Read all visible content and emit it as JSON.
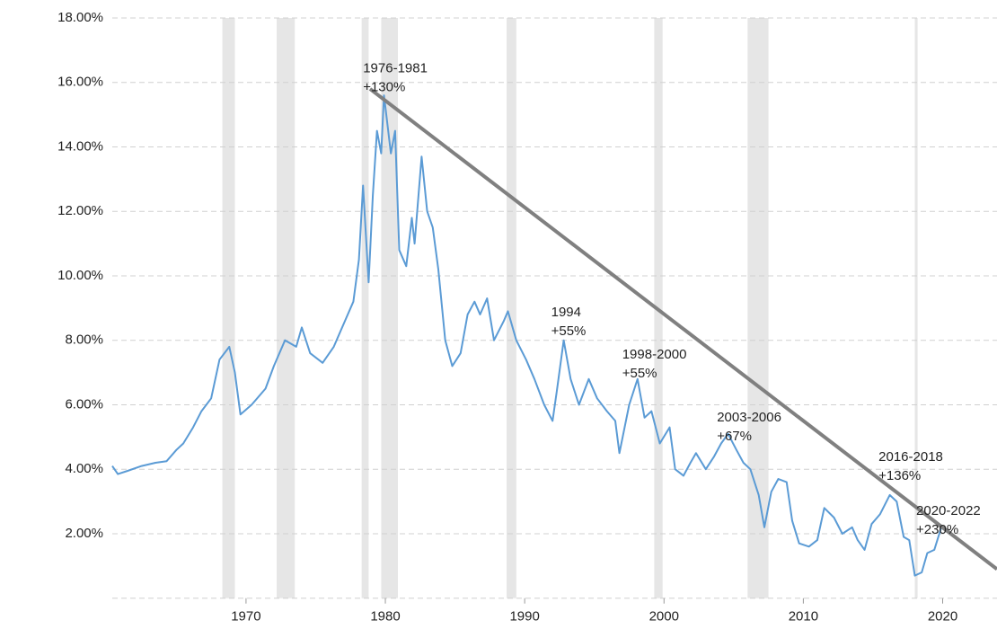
{
  "chart_data": {
    "type": "line",
    "x": [
      1960.4,
      1960.8,
      1961.5,
      1962.5,
      1963.5,
      1964.3,
      1965.0,
      1965.5,
      1966.2,
      1966.8,
      1967.5,
      1968.1,
      1968.8,
      1969.2,
      1969.6,
      1970.4,
      1971.4,
      1972.0,
      1972.8,
      1973.6,
      1974.0,
      1974.6,
      1975.5,
      1976.3,
      1977.2,
      1977.7,
      1978.1,
      1978.4,
      1978.8,
      1979.1,
      1979.4,
      1979.7,
      1979.9,
      1980.4,
      1980.7,
      1981.0,
      1981.5,
      1981.9,
      1982.1,
      1982.6,
      1983.0,
      1983.4,
      1983.8,
      1984.3,
      1984.8,
      1985.4,
      1985.9,
      1986.4,
      1986.8,
      1987.3,
      1987.8,
      1988.5,
      1988.8,
      1989.4,
      1990.1,
      1990.7,
      1991.4,
      1992.0,
      1992.3,
      1992.8,
      1993.3,
      1993.9,
      1994.6,
      1995.2,
      1995.9,
      1996.5,
      1996.8,
      1997.5,
      1998.1,
      1998.6,
      1999.1,
      1999.7,
      2000.4,
      2000.8,
      2001.4,
      2001.9,
      2002.3,
      2003.0,
      2003.6,
      2004.1,
      2004.6,
      2005.2,
      2005.7,
      2006.2,
      2006.8,
      2007.2,
      2007.7,
      2008.2,
      2008.8,
      2009.2,
      2009.7,
      2010.4,
      2011.0,
      2011.5,
      2012.2,
      2012.8,
      2013.5,
      2013.9,
      2014.4,
      2014.9,
      2015.5,
      2016.2,
      2016.7,
      2017.2,
      2017.6,
      2018.0,
      2018.5,
      2018.9,
      2019.4,
      2019.9
    ],
    "series": [
      {
        "color": "#5b9bd5",
        "values": [
          4.1,
          3.85,
          3.95,
          4.1,
          4.2,
          4.25,
          4.6,
          4.8,
          5.3,
          5.8,
          6.2,
          7.4,
          7.8,
          7.0,
          5.7,
          6.0,
          6.5,
          7.2,
          8.0,
          7.8,
          8.4,
          7.6,
          7.3,
          7.8,
          8.7,
          9.2,
          10.5,
          12.8,
          9.8,
          12.5,
          14.5,
          13.8,
          15.6,
          13.8,
          14.5,
          10.8,
          10.3,
          11.8,
          11.0,
          13.7,
          12.0,
          11.5,
          10.2,
          8.0,
          7.2,
          7.6,
          8.8,
          9.2,
          8.8,
          9.3,
          8.0,
          8.6,
          8.9,
          8.0,
          7.4,
          6.8,
          6.0,
          5.5,
          6.4,
          8.0,
          6.8,
          6.0,
          6.8,
          6.2,
          5.8,
          5.5,
          4.5,
          6.0,
          6.8,
          5.6,
          5.8,
          4.8,
          5.3,
          4.0,
          3.8,
          4.2,
          4.5,
          4.0,
          4.4,
          4.8,
          5.1,
          4.6,
          4.2,
          4.0,
          3.2,
          2.2,
          3.3,
          3.7,
          3.6,
          2.4,
          1.7,
          1.6,
          1.8,
          2.8,
          2.5,
          2.0,
          2.2,
          1.8,
          1.5,
          2.3,
          2.6,
          3.2,
          3.0,
          1.9,
          1.8,
          0.7,
          0.8,
          1.4,
          1.5,
          2.2
        ]
      }
    ],
    "recessions": [
      [
        1968.3,
        1969.2
      ],
      [
        1972.2,
        1973.5
      ],
      [
        1978.3,
        1978.8
      ],
      [
        1979.7,
        1980.9
      ],
      [
        1988.7,
        1989.4
      ],
      [
        1999.3,
        1999.9
      ],
      [
        2006.0,
        2007.5
      ],
      [
        2018.0,
        2018.2
      ]
    ],
    "band_color": "#e6e6e6",
    "trend_line": {
      "color": "#808080",
      "x": [
        1978.9,
        2023.9
      ],
      "values": [
        15.8,
        0.9
      ]
    },
    "annotations": [
      {
        "lines": [
          "1976-1981",
          "+130%"
        ],
        "x": 1978.4,
        "y": 16.42
      },
      {
        "lines": [
          "1994",
          "+55%"
        ],
        "x": 1991.9,
        "y": 8.85
      },
      {
        "lines": [
          "1998-2000",
          "+55%"
        ],
        "x": 1997.0,
        "y": 7.55
      },
      {
        "lines": [
          "2003-2006",
          "+67%"
        ],
        "x": 2003.8,
        "y": 5.6
      },
      {
        "lines": [
          "2016-2018",
          "+136%"
        ],
        "x": 2015.4,
        "y": 4.37
      },
      {
        "lines": [
          "2020-2022",
          "+230%"
        ],
        "x": 2018.1,
        "y": 2.7
      }
    ],
    "xlim": [
      1960.4,
      2023.9
    ],
    "ylim": [
      0,
      18
    ],
    "xticks": [
      1970,
      1980,
      1990,
      2000,
      2010,
      2020
    ],
    "yticks": [
      {
        "value": 2,
        "label": "2.00%"
      },
      {
        "value": 4,
        "label": "4.00%"
      },
      {
        "value": 6,
        "label": "6.00%"
      },
      {
        "value": 8,
        "label": "8.00%"
      },
      {
        "value": 10,
        "label": "10.00%"
      },
      {
        "value": 12,
        "label": "12.00%"
      },
      {
        "value": 14,
        "label": "14.00%"
      },
      {
        "value": 16,
        "label": "16.00%"
      },
      {
        "value": 18,
        "label": "18.00%"
      }
    ],
    "grid": true
  }
}
